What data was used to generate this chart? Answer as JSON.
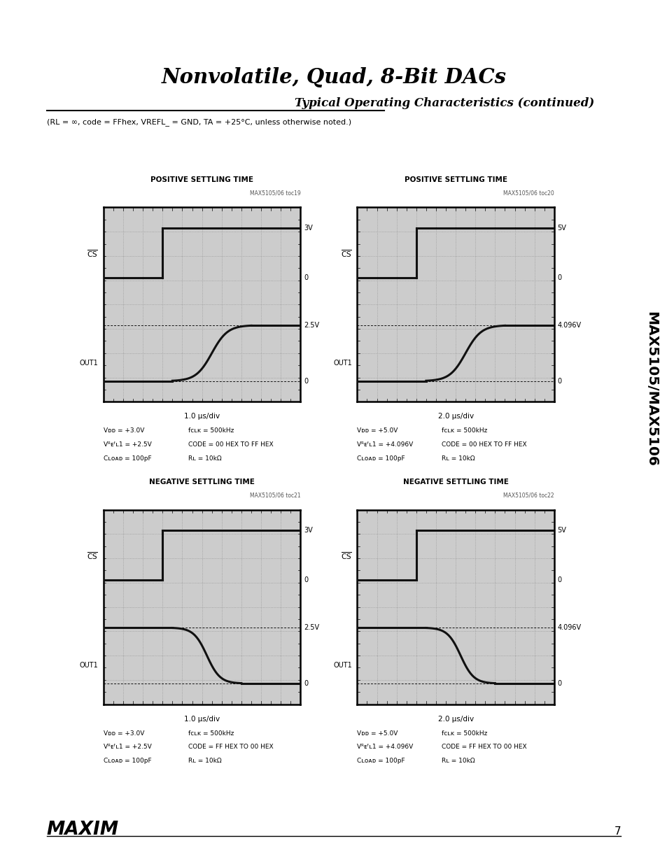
{
  "title": "Nonvolatile, Quad, 8-Bit DACs",
  "subtitle": "Typical Operating Characteristics (continued)",
  "condition": "(Rₗ = ∞, code = FFhex, Vᴿᴇᶠʟ_ = GND, Tₐ = +25°C, unless otherwise noted.)",
  "condition_plain": "(RL = ∞, code = FFhex, VREFL_ = GND, TA = +25°C, unless otherwise noted.)",
  "side_label": "MAX5105/MAX5106",
  "plots": [
    {
      "title": "POSITIVE SETTLING TIME",
      "toc": "MAX5105/06 toc19",
      "time_div": "1.0 μs/div",
      "params_left": [
        "Vᴅᴅ = +3.0V",
        "Vᴿᴇᶠʟ1 = +2.5V",
        "Cʟᴏᴀᴅ = 100pF"
      ],
      "params_right": [
        "fᴄʟᴋ = 500kHz",
        "CODE = 00 HEX TO FF HEX",
        "Rʟ = 10kΩ"
      ],
      "right_labels": [
        "3V",
        "0",
        "2.5V",
        "0"
      ],
      "type": "positive"
    },
    {
      "title": "POSITIVE SETTLING TIME",
      "toc": "MAX5105/06 toc20",
      "time_div": "2.0 μs/div",
      "params_left": [
        "Vᴅᴅ = +5.0V",
        "Vᴿᴇᶠʟ1 = +4.096V",
        "Cʟᴏᴀᴅ = 100pF"
      ],
      "params_right": [
        "fᴄʟᴋ = 500kHz",
        "CODE = 00 HEX TO FF HEX",
        "Rʟ = 10kΩ"
      ],
      "right_labels": [
        "5V",
        "0",
        "4.096V",
        "0"
      ],
      "type": "positive"
    },
    {
      "title": "NEGATIVE SETTLING TIME",
      "toc": "MAX5105/06 toc21",
      "time_div": "1.0 μs/div",
      "params_left": [
        "Vᴅᴅ = +3.0V",
        "Vᴿᴇᶠʟ1 = +2.5V",
        "Cʟᴏᴀᴅ = 100pF"
      ],
      "params_right": [
        "fᴄʟᴋ = 500kHz",
        "CODE = FF HEX TO 00 HEX",
        "Rʟ = 10kΩ"
      ],
      "right_labels": [
        "3V",
        "0",
        "2.5V",
        "0"
      ],
      "type": "negative"
    },
    {
      "title": "NEGATIVE SETTLING TIME",
      "toc": "MAX5105/06 toc22",
      "time_div": "2.0 μs/div",
      "params_left": [
        "Vᴅᴅ = +5.0V",
        "Vᴿᴇᶠʟ1 = +4.096V",
        "Cʟᴏᴀᴅ = 100pF"
      ],
      "params_right": [
        "fᴄʟᴋ = 500kHz",
        "CODE = FF HEX TO 00 HEX",
        "Rʟ = 10kΩ"
      ],
      "right_labels": [
        "5V",
        "0",
        "4.096V",
        "0"
      ],
      "type": "negative"
    }
  ],
  "bg_color": "#ffffff",
  "plot_bg": "#cccccc",
  "grid_color": "#999999",
  "signal_color": "#111111",
  "page_number": "7"
}
